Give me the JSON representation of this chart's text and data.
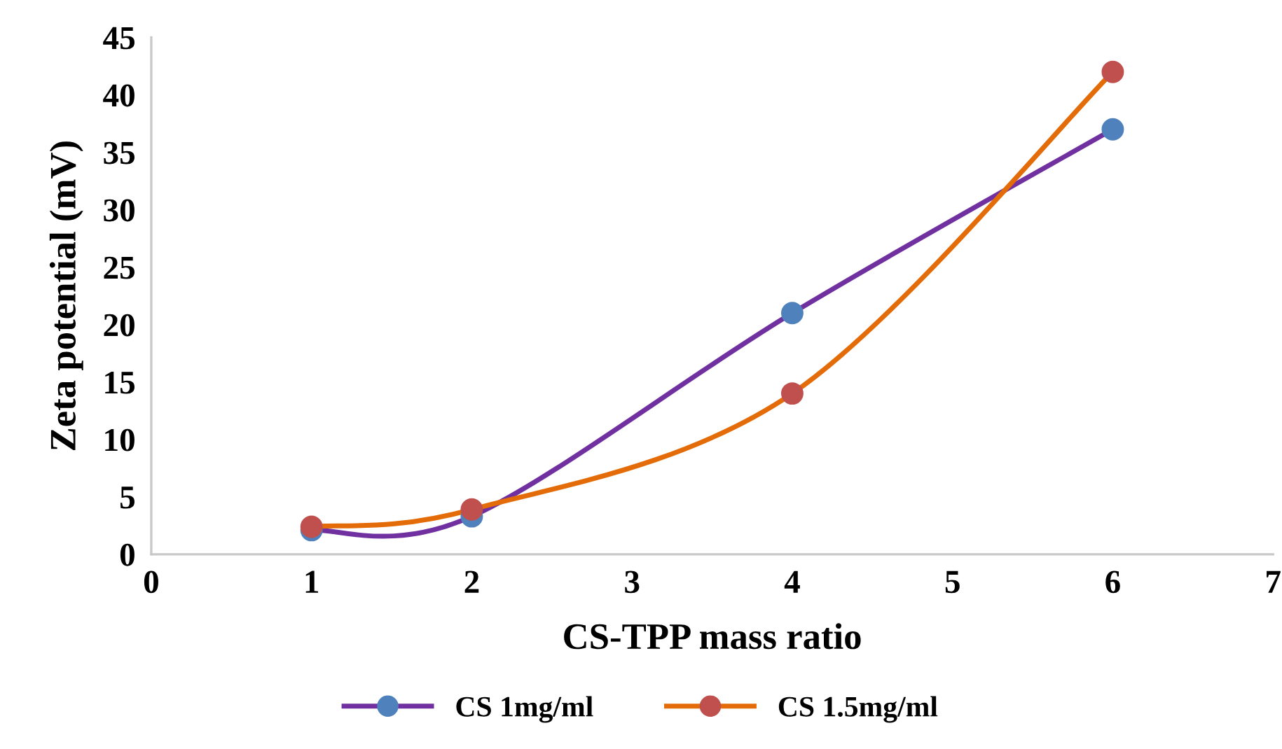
{
  "chart_data": {
    "type": "line",
    "xlabel": "CS-TPP mass ratio",
    "ylabel": "Zeta potential (mV)",
    "x": [
      1,
      2,
      4,
      6
    ],
    "series": [
      {
        "name": "CS 1mg/ml",
        "color": "#7030a0",
        "colors": [
          "#4f81bd",
          "#4f81bd",
          "#4f81bd",
          "#4f81bd"
        ],
        "values": [
          2.1,
          3.3,
          21,
          37
        ]
      },
      {
        "name": "CS 1.5mg/ml",
        "color": "#e36c09",
        "colors": [
          "#c0504d",
          "#c0504d",
          "#c0504d",
          "#c0504d"
        ],
        "values": [
          2.4,
          3.9,
          14,
          42
        ]
      }
    ],
    "xlim": [
      0,
      7
    ],
    "xticks": [
      0,
      1,
      2,
      3,
      4,
      5,
      6,
      7
    ],
    "ylim": [
      0,
      45
    ],
    "yticks": [
      0,
      5,
      10,
      15,
      20,
      25,
      30,
      35,
      40,
      45
    ],
    "grid": false,
    "legend": "bottom",
    "marker": "circle",
    "line_style": "solid"
  }
}
